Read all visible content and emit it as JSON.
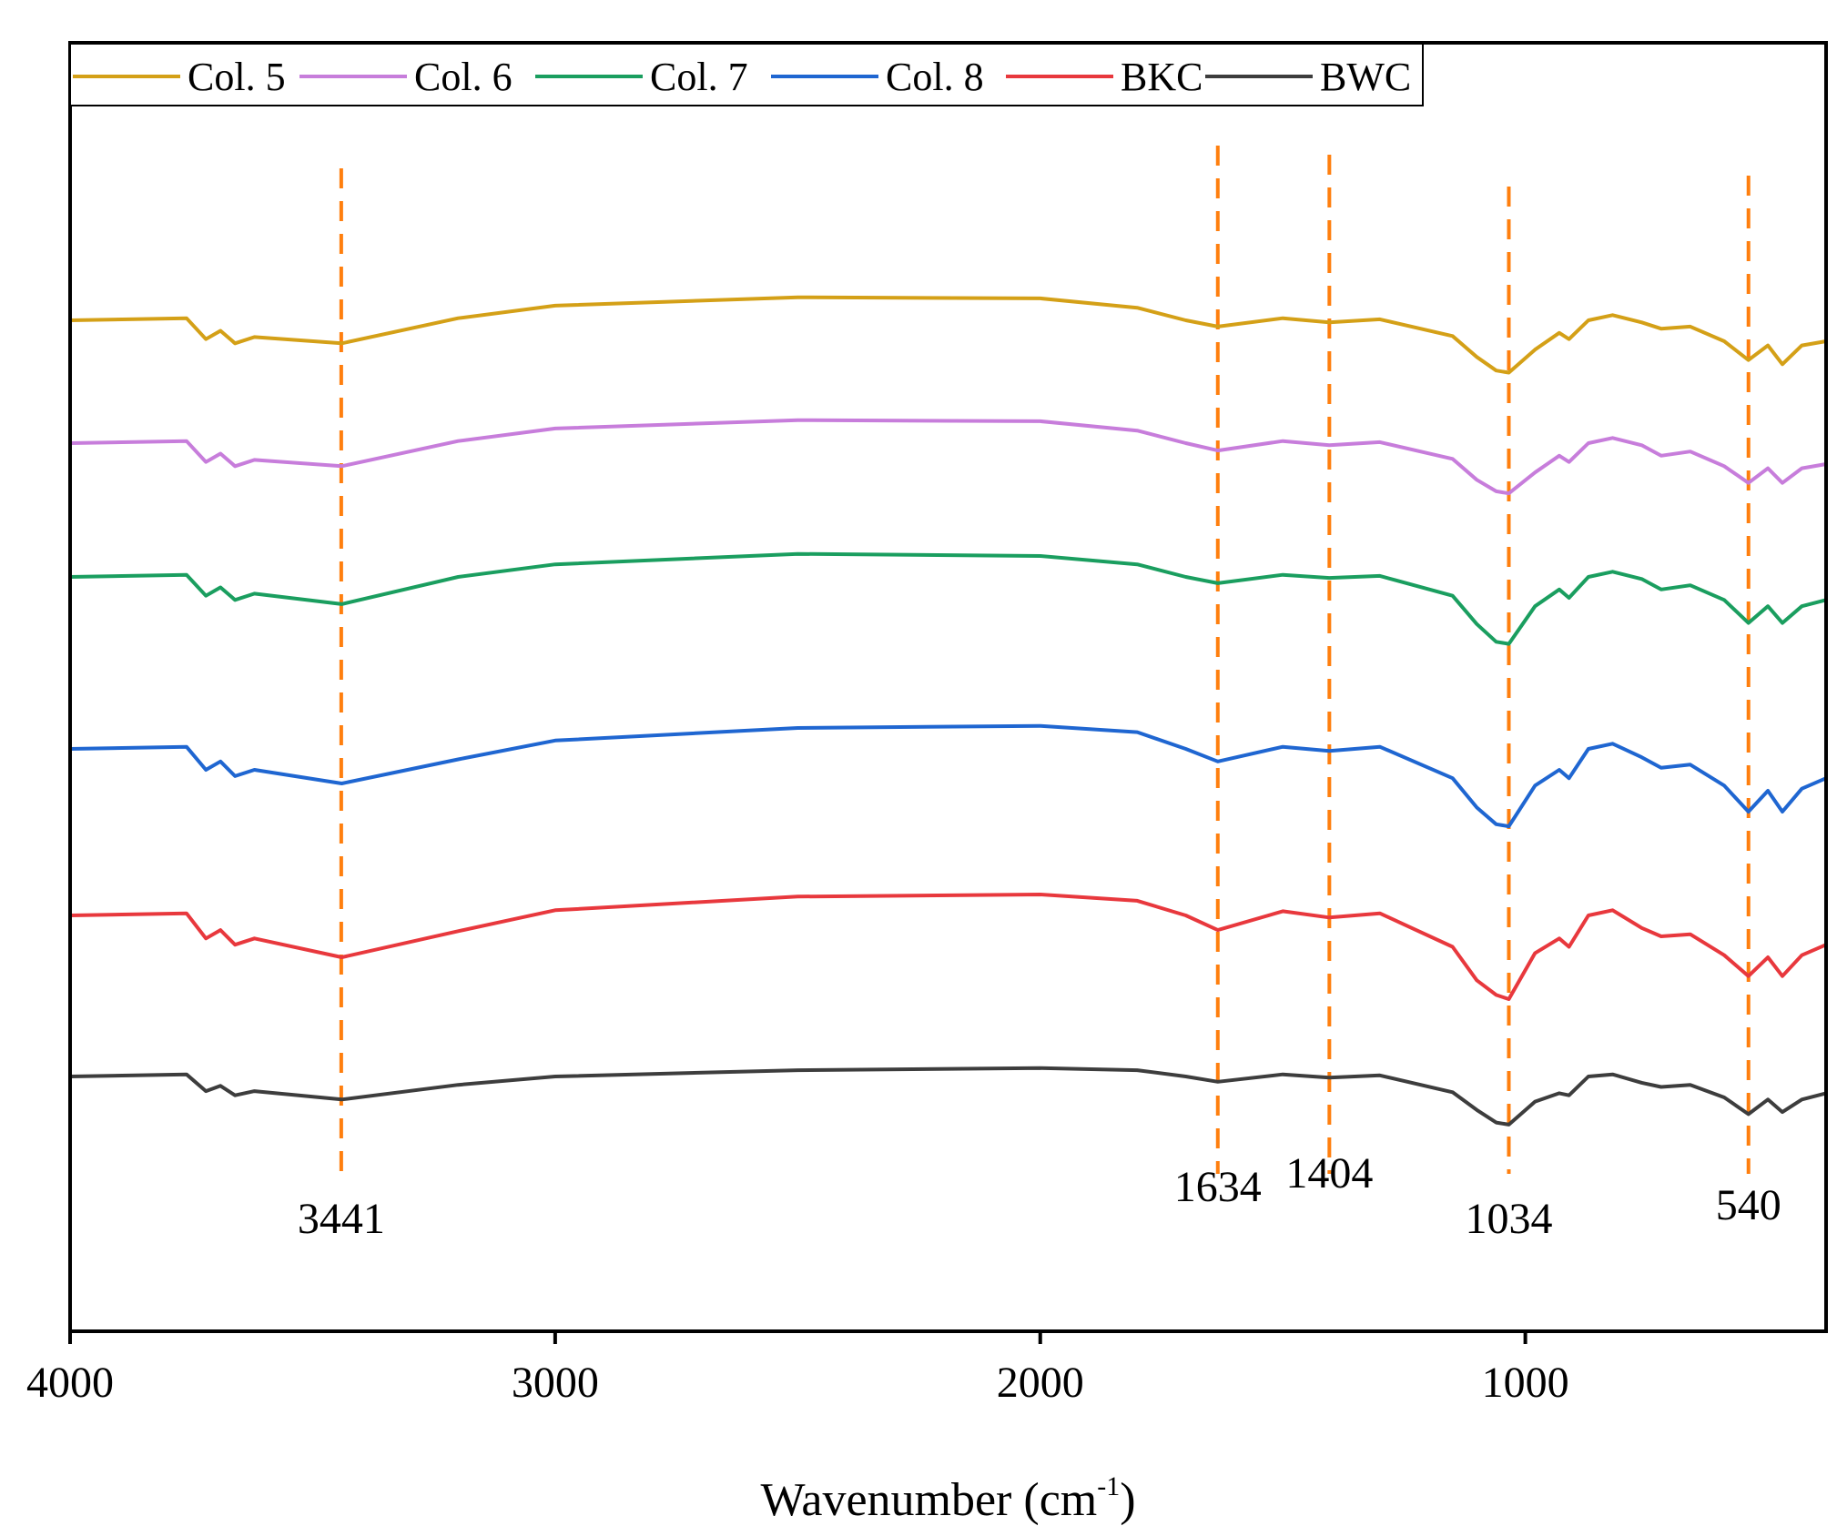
{
  "chart_data": {
    "type": "line",
    "title": "",
    "xlabel": "Wavenumber (cm",
    "xlabel_exponent": "-1",
    "xlabel_close": ")",
    "ylabel": "",
    "xlim": [
      4000,
      380
    ],
    "x_ticks": [
      4000,
      3000,
      2000,
      1000
    ],
    "x_tick_labels": [
      "4000",
      "3000",
      "2000",
      "1000"
    ],
    "y_ticks_shown": false,
    "legend_position": "top-left",
    "peak_markers": [
      {
        "x": 3441,
        "label": "3441"
      },
      {
        "x": 1634,
        "label": "1634"
      },
      {
        "x": 1404,
        "label": "1404"
      },
      {
        "x": 1034,
        "label": "1034"
      },
      {
        "x": 540,
        "label": "540"
      }
    ],
    "peak_marker_color": "#ff7f0e",
    "series": [
      {
        "name": "Col. 5",
        "color": "#d4a017",
        "offset": 5,
        "points": [
          [
            4000,
            0.0
          ],
          [
            3760,
            0.02
          ],
          [
            3720,
            -0.18
          ],
          [
            3690,
            -0.1
          ],
          [
            3660,
            -0.22
          ],
          [
            3620,
            -0.16
          ],
          [
            3440,
            -0.22
          ],
          [
            3200,
            0.02
          ],
          [
            3000,
            0.14
          ],
          [
            2500,
            0.22
          ],
          [
            2000,
            0.21
          ],
          [
            1800,
            0.12
          ],
          [
            1700,
            0.0
          ],
          [
            1634,
            -0.06
          ],
          [
            1500,
            0.02
          ],
          [
            1404,
            -0.02
          ],
          [
            1300,
            0.01
          ],
          [
            1150,
            -0.15
          ],
          [
            1100,
            -0.35
          ],
          [
            1060,
            -0.48
          ],
          [
            1034,
            -0.5
          ],
          [
            980,
            -0.28
          ],
          [
            930,
            -0.12
          ],
          [
            910,
            -0.18
          ],
          [
            870,
            0.0
          ],
          [
            820,
            0.05
          ],
          [
            760,
            -0.02
          ],
          [
            720,
            -0.08
          ],
          [
            660,
            -0.06
          ],
          [
            590,
            -0.2
          ],
          [
            540,
            -0.38
          ],
          [
            500,
            -0.24
          ],
          [
            470,
            -0.42
          ],
          [
            430,
            -0.24
          ],
          [
            380,
            -0.2
          ]
        ]
      },
      {
        "name": "Col. 6",
        "color": "#c77ddb",
        "offset": 4,
        "points": [
          [
            4000,
            0.0
          ],
          [
            3760,
            0.02
          ],
          [
            3720,
            -0.18
          ],
          [
            3690,
            -0.1
          ],
          [
            3660,
            -0.22
          ],
          [
            3620,
            -0.16
          ],
          [
            3440,
            -0.22
          ],
          [
            3200,
            0.02
          ],
          [
            3000,
            0.14
          ],
          [
            2500,
            0.22
          ],
          [
            2000,
            0.21
          ],
          [
            1800,
            0.12
          ],
          [
            1700,
            0.0
          ],
          [
            1634,
            -0.07
          ],
          [
            1500,
            0.02
          ],
          [
            1404,
            -0.02
          ],
          [
            1300,
            0.01
          ],
          [
            1150,
            -0.15
          ],
          [
            1100,
            -0.35
          ],
          [
            1060,
            -0.46
          ],
          [
            1034,
            -0.48
          ],
          [
            980,
            -0.28
          ],
          [
            930,
            -0.12
          ],
          [
            910,
            -0.18
          ],
          [
            870,
            0.0
          ],
          [
            820,
            0.05
          ],
          [
            760,
            -0.02
          ],
          [
            720,
            -0.12
          ],
          [
            660,
            -0.08
          ],
          [
            590,
            -0.22
          ],
          [
            540,
            -0.38
          ],
          [
            500,
            -0.24
          ],
          [
            470,
            -0.38
          ],
          [
            430,
            -0.24
          ],
          [
            380,
            -0.2
          ]
        ]
      },
      {
        "name": "Col. 7",
        "color": "#1a9e5f",
        "offset": 3,
        "points": [
          [
            4000,
            0.0
          ],
          [
            3760,
            0.02
          ],
          [
            3720,
            -0.18
          ],
          [
            3690,
            -0.1
          ],
          [
            3660,
            -0.22
          ],
          [
            3620,
            -0.16
          ],
          [
            3440,
            -0.26
          ],
          [
            3200,
            0.0
          ],
          [
            3000,
            0.12
          ],
          [
            2500,
            0.22
          ],
          [
            2000,
            0.2
          ],
          [
            1800,
            0.12
          ],
          [
            1700,
            0.0
          ],
          [
            1634,
            -0.06
          ],
          [
            1500,
            0.02
          ],
          [
            1404,
            -0.01
          ],
          [
            1300,
            0.01
          ],
          [
            1150,
            -0.18
          ],
          [
            1100,
            -0.45
          ],
          [
            1060,
            -0.62
          ],
          [
            1034,
            -0.64
          ],
          [
            980,
            -0.28
          ],
          [
            930,
            -0.12
          ],
          [
            910,
            -0.2
          ],
          [
            870,
            0.0
          ],
          [
            820,
            0.05
          ],
          [
            760,
            -0.02
          ],
          [
            720,
            -0.12
          ],
          [
            660,
            -0.08
          ],
          [
            590,
            -0.22
          ],
          [
            540,
            -0.44
          ],
          [
            500,
            -0.28
          ],
          [
            470,
            -0.44
          ],
          [
            430,
            -0.28
          ],
          [
            380,
            -0.22
          ]
        ]
      },
      {
        "name": "Col. 8",
        "color": "#1f66d1",
        "offset": 2,
        "points": [
          [
            4000,
            0.0
          ],
          [
            3760,
            0.02
          ],
          [
            3720,
            -0.2
          ],
          [
            3690,
            -0.12
          ],
          [
            3660,
            -0.26
          ],
          [
            3620,
            -0.2
          ],
          [
            3440,
            -0.33
          ],
          [
            3200,
            -0.1
          ],
          [
            3000,
            0.08
          ],
          [
            2500,
            0.2
          ],
          [
            2000,
            0.22
          ],
          [
            1800,
            0.16
          ],
          [
            1700,
            0.0
          ],
          [
            1634,
            -0.12
          ],
          [
            1500,
            0.02
          ],
          [
            1404,
            -0.02
          ],
          [
            1300,
            0.02
          ],
          [
            1150,
            -0.28
          ],
          [
            1100,
            -0.56
          ],
          [
            1060,
            -0.72
          ],
          [
            1034,
            -0.74
          ],
          [
            980,
            -0.35
          ],
          [
            930,
            -0.2
          ],
          [
            910,
            -0.28
          ],
          [
            870,
            0.0
          ],
          [
            820,
            0.05
          ],
          [
            760,
            -0.08
          ],
          [
            720,
            -0.18
          ],
          [
            660,
            -0.15
          ],
          [
            590,
            -0.35
          ],
          [
            540,
            -0.6
          ],
          [
            500,
            -0.4
          ],
          [
            470,
            -0.6
          ],
          [
            430,
            -0.38
          ],
          [
            380,
            -0.28
          ]
        ]
      },
      {
        "name": "BKC",
        "color": "#e8383d",
        "offset": 1,
        "points": [
          [
            4000,
            0.0
          ],
          [
            3760,
            0.02
          ],
          [
            3720,
            -0.22
          ],
          [
            3690,
            -0.14
          ],
          [
            3660,
            -0.28
          ],
          [
            3620,
            -0.22
          ],
          [
            3440,
            -0.4
          ],
          [
            3200,
            -0.15
          ],
          [
            3000,
            0.05
          ],
          [
            2500,
            0.18
          ],
          [
            2000,
            0.2
          ],
          [
            1800,
            0.14
          ],
          [
            1700,
            0.0
          ],
          [
            1634,
            -0.14
          ],
          [
            1500,
            0.04
          ],
          [
            1404,
            -0.02
          ],
          [
            1300,
            0.02
          ],
          [
            1150,
            -0.3
          ],
          [
            1100,
            -0.62
          ],
          [
            1060,
            -0.76
          ],
          [
            1034,
            -0.8
          ],
          [
            980,
            -0.36
          ],
          [
            930,
            -0.22
          ],
          [
            910,
            -0.3
          ],
          [
            870,
            0.0
          ],
          [
            820,
            0.05
          ],
          [
            760,
            -0.12
          ],
          [
            720,
            -0.2
          ],
          [
            660,
            -0.18
          ],
          [
            590,
            -0.38
          ],
          [
            540,
            -0.58
          ],
          [
            500,
            -0.4
          ],
          [
            470,
            -0.58
          ],
          [
            430,
            -0.38
          ],
          [
            380,
            -0.28
          ]
        ]
      },
      {
        "name": "BWC",
        "color": "#3d3d3d",
        "offset": 0,
        "points": [
          [
            4000,
            0.0
          ],
          [
            3760,
            0.02
          ],
          [
            3720,
            -0.14
          ],
          [
            3690,
            -0.09
          ],
          [
            3660,
            -0.18
          ],
          [
            3620,
            -0.14
          ],
          [
            3440,
            -0.22
          ],
          [
            3200,
            -0.08
          ],
          [
            3000,
            0.0
          ],
          [
            2500,
            0.06
          ],
          [
            2000,
            0.08
          ],
          [
            1800,
            0.06
          ],
          [
            1700,
            0.0
          ],
          [
            1634,
            -0.05
          ],
          [
            1500,
            0.02
          ],
          [
            1404,
            -0.01
          ],
          [
            1300,
            0.01
          ],
          [
            1150,
            -0.15
          ],
          [
            1100,
            -0.32
          ],
          [
            1060,
            -0.44
          ],
          [
            1034,
            -0.46
          ],
          [
            980,
            -0.24
          ],
          [
            930,
            -0.16
          ],
          [
            910,
            -0.18
          ],
          [
            870,
            0.0
          ],
          [
            820,
            0.02
          ],
          [
            760,
            -0.06
          ],
          [
            720,
            -0.1
          ],
          [
            660,
            -0.08
          ],
          [
            590,
            -0.2
          ],
          [
            540,
            -0.36
          ],
          [
            500,
            -0.22
          ],
          [
            470,
            -0.34
          ],
          [
            430,
            -0.22
          ],
          [
            380,
            -0.16
          ]
        ]
      }
    ]
  }
}
